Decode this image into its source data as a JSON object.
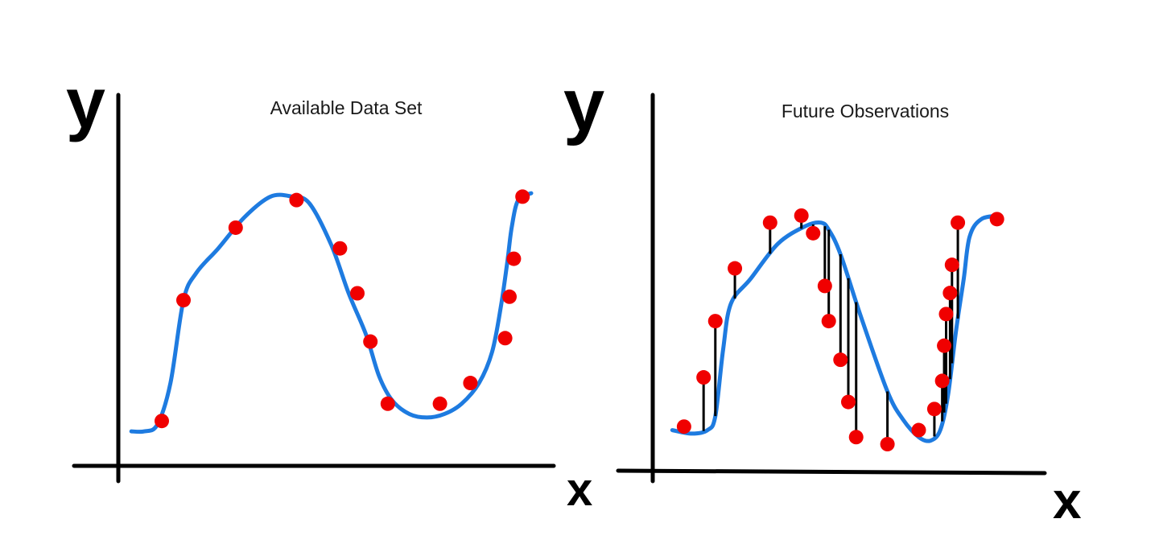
{
  "colors": {
    "points": "#f00000",
    "curve": "#1e7be0",
    "axes": "#000000",
    "background": "#ffffff"
  },
  "chart_data": [
    {
      "type": "scatter",
      "title": "Available Data Set",
      "xlabel": "x",
      "ylabel": "y",
      "xlim": [
        0,
        10
      ],
      "ylim": [
        0,
        10
      ],
      "grid": false,
      "legend": "none",
      "series": [
        {
          "kind": "points",
          "x": [
            1.0,
            1.5,
            2.7,
            4.1,
            5.1,
            5.5,
            5.8,
            6.2,
            7.4,
            8.1,
            8.9,
            9.0,
            9.1,
            9.3
          ],
          "y": [
            1.3,
            4.8,
            6.9,
            7.7,
            6.3,
            5.0,
            3.6,
            1.8,
            1.8,
            2.4,
            3.7,
            4.9,
            6.0,
            7.8
          ]
        },
        {
          "kind": "curve",
          "x": [
            0.3,
            0.6,
            0.9,
            1.2,
            1.5,
            1.8,
            2.3,
            2.9,
            3.5,
            4.0,
            4.4,
            4.9,
            5.3,
            5.7,
            6.0,
            6.3,
            6.7,
            7.1,
            7.5,
            7.9,
            8.3,
            8.6,
            8.8,
            8.95,
            9.05,
            9.2,
            9.5
          ],
          "y": [
            1.0,
            1.0,
            1.2,
            2.4,
            4.8,
            5.6,
            6.3,
            7.2,
            7.8,
            7.8,
            7.6,
            6.4,
            5.0,
            3.8,
            2.6,
            1.9,
            1.5,
            1.4,
            1.5,
            1.8,
            2.4,
            3.3,
            4.6,
            5.9,
            6.9,
            7.7,
            7.9
          ]
        }
      ]
    },
    {
      "type": "scatter",
      "title": "Future Observations",
      "xlabel": "x",
      "ylabel": "y",
      "xlim": [
        0,
        10
      ],
      "ylim": [
        0,
        10
      ],
      "grid": false,
      "legend": "none",
      "series": [
        {
          "kind": "points",
          "x": [
            0.8,
            1.3,
            1.6,
            2.1,
            3.0,
            3.8,
            4.1,
            4.4,
            4.5,
            4.8,
            5.0,
            5.2,
            6.0,
            6.8,
            7.2,
            7.4,
            7.45,
            7.5,
            7.6,
            7.65,
            7.8,
            8.8
          ],
          "y": [
            1.3,
            2.7,
            4.3,
            5.8,
            7.1,
            7.3,
            6.8,
            5.3,
            4.3,
            3.2,
            2.0,
            1.0,
            0.8,
            1.2,
            1.8,
            2.6,
            3.6,
            4.5,
            5.1,
            5.9,
            7.1,
            7.2
          ]
        },
        {
          "kind": "curve",
          "x": [
            0.5,
            1.0,
            1.4,
            1.6,
            1.8,
            2.0,
            2.5,
            3.2,
            3.9,
            4.3,
            4.5,
            4.8,
            5.3,
            6.0,
            6.4,
            6.8,
            7.1,
            7.35,
            7.55,
            7.75,
            7.95,
            8.1,
            8.4,
            8.9
          ],
          "y": [
            1.2,
            1.1,
            1.2,
            1.6,
            3.5,
            4.8,
            5.5,
            6.5,
            7.0,
            7.1,
            6.9,
            6.2,
            4.5,
            2.3,
            1.5,
            1.0,
            0.9,
            1.2,
            2.2,
            4.0,
            5.5,
            6.7,
            7.2,
            7.3
          ]
        }
      ]
    }
  ]
}
